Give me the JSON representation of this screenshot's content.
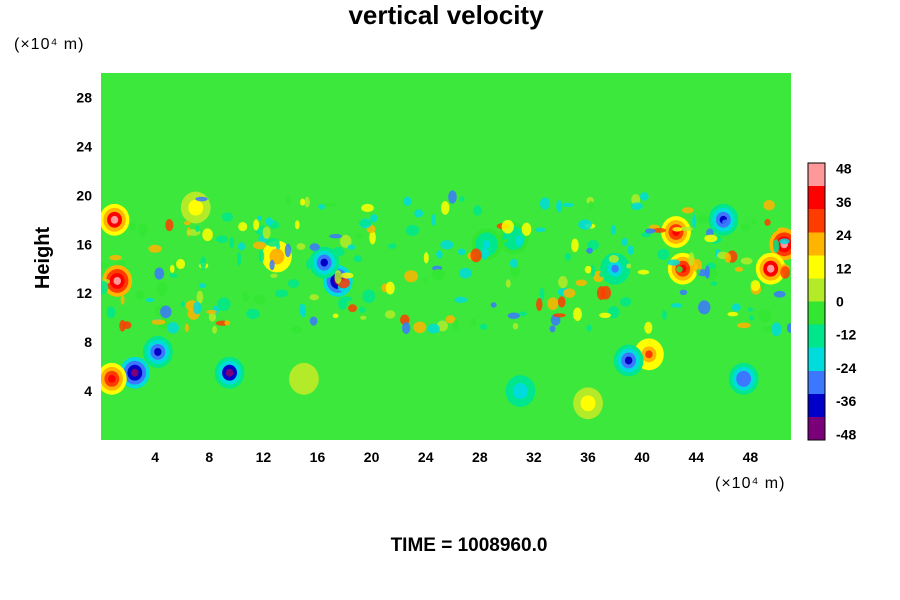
{
  "chart_data": {
    "type": "heatmap",
    "title": "vertical velocity",
    "xlabel": "",
    "ylabel": "Height",
    "x_unit": "(×10⁴ m)",
    "y_unit": "(×10⁴ m)",
    "xlim": [
      0,
      51
    ],
    "ylim": [
      0,
      30
    ],
    "x_ticks": [
      4,
      8,
      12,
      16,
      20,
      24,
      28,
      32,
      36,
      40,
      44,
      48
    ],
    "y_ticks": [
      4,
      8,
      12,
      16,
      20,
      24,
      28
    ],
    "colorbar": {
      "min": -50,
      "max": 50,
      "ticks": [
        48,
        36,
        24,
        12,
        0,
        -12,
        -24,
        -36,
        -48
      ],
      "colors": [
        "#7a007a",
        "#0000c8",
        "#3c78ff",
        "#00dcdc",
        "#00e68c",
        "#32e632",
        "#b4eb28",
        "#ffff00",
        "#ffb400",
        "#ff3c00",
        "#ff0000",
        "#ff9999"
      ]
    },
    "background_value": 0,
    "features": [
      {
        "x": 28.5,
        "y": 16,
        "value": -20
      },
      {
        "x": 30.5,
        "y": 16.5,
        "value": -16
      },
      {
        "x": 17.5,
        "y": 13,
        "value": -48
      },
      {
        "x": 16.5,
        "y": 14.5,
        "value": -40
      },
      {
        "x": 2.5,
        "y": 5.5,
        "value": -48
      },
      {
        "x": 4.2,
        "y": 7.2,
        "value": -40
      },
      {
        "x": 9.5,
        "y": 5.5,
        "value": -44
      },
      {
        "x": 1.2,
        "y": 13,
        "value": 48
      },
      {
        "x": 1,
        "y": 18,
        "value": 44
      },
      {
        "x": 0.8,
        "y": 5,
        "value": 40
      },
      {
        "x": 42.5,
        "y": 17,
        "value": 40
      },
      {
        "x": 43,
        "y": 14,
        "value": 36
      },
      {
        "x": 50.5,
        "y": 16,
        "value": 48
      },
      {
        "x": 49.5,
        "y": 14,
        "value": 44
      },
      {
        "x": 40.5,
        "y": 7,
        "value": 28
      },
      {
        "x": 39,
        "y": 6.5,
        "value": -36
      },
      {
        "x": 47.5,
        "y": 5,
        "value": -32
      },
      {
        "x": 38,
        "y": 14,
        "value": -28
      },
      {
        "x": 46,
        "y": 18,
        "value": -36
      },
      {
        "x": 31,
        "y": 4,
        "value": -24
      },
      {
        "x": 36,
        "y": 3,
        "value": 12
      },
      {
        "x": 15,
        "y": 5,
        "value": 8
      },
      {
        "x": 7,
        "y": 19,
        "value": 12
      },
      {
        "x": 13,
        "y": 15,
        "value": 24
      }
    ],
    "time_label": "TIME = 1008960.0"
  }
}
